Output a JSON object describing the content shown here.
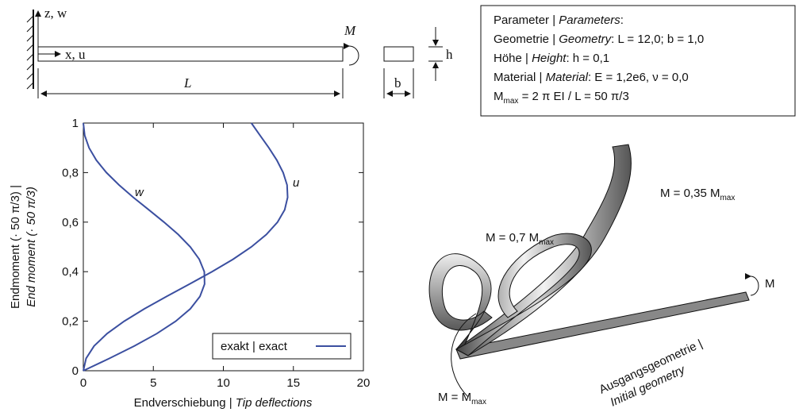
{
  "chart_data": {
    "type": "line",
    "xlabel": {
      "de": "Endverschiebung |",
      "en": "Tip deflections"
    },
    "ylabel": {
      "de": "Endmoment (· 50 π/3) |",
      "en": "End moment (· 50 π/3)"
    },
    "legend_label": "exakt | exact",
    "xlim": [
      0,
      20
    ],
    "xticks": [
      0,
      5,
      10,
      15,
      20
    ],
    "ylim": [
      0,
      1
    ],
    "yticks": [
      0,
      {
        "value": 0.2,
        "label": "0,2"
      },
      {
        "value": 0.4,
        "label": "0,4"
      },
      {
        "value": 0.6,
        "label": "0,6"
      },
      {
        "value": 0.8,
        "label": "0,8"
      },
      1
    ],
    "series": [
      {
        "name": "w",
        "color": "#3b4fa0",
        "x": [
          0,
          1.87,
          3.65,
          5.25,
          6.6,
          7.64,
          8.33,
          8.66,
          8.64,
          8.28,
          7.64,
          6.78,
          5.76,
          4.67,
          3.57,
          2.55,
          1.65,
          0.93,
          0.41,
          0.1,
          0
        ],
        "values": [
          0,
          0.05,
          0.1,
          0.15,
          0.2,
          0.25,
          0.3,
          0.35,
          0.4,
          0.45,
          0.5,
          0.55,
          0.6,
          0.65,
          0.7,
          0.75,
          0.8,
          0.85,
          0.9,
          0.95,
          1
        ]
      },
      {
        "name": "u",
        "color": "#3b4fa0",
        "x": [
          0,
          0.2,
          0.77,
          1.7,
          2.92,
          4.36,
          5.95,
          7.59,
          9.19,
          10.69,
          12,
          13.07,
          13.87,
          14.38,
          14.59,
          14.55,
          14.27,
          13.82,
          13.25,
          12.62,
          12
        ],
        "values": [
          0,
          0.05,
          0.1,
          0.15,
          0.2,
          0.25,
          0.3,
          0.35,
          0.4,
          0.45,
          0.5,
          0.55,
          0.6,
          0.65,
          0.7,
          0.75,
          0.8,
          0.85,
          0.9,
          0.95,
          1
        ]
      }
    ]
  },
  "beam": {
    "z_axis": "z, w",
    "x_axis": "x, u",
    "moment": "M",
    "length": "L",
    "height": "h",
    "width": "b"
  },
  "parameters": {
    "line1": [
      "Parameter | ",
      "Parameters",
      ":"
    ],
    "line2": [
      "Geometrie | ",
      "Geometry",
      ": L = 12,0; b = 1,0"
    ],
    "line3": [
      "Höhe | ",
      "Height",
      ": h = 0,1"
    ],
    "line4": [
      "Material | ",
      "Material",
      ": E = 1,2e6, ν = 0,0"
    ],
    "line5": [
      "M",
      "max",
      " = 2 π EI / L = 50 π/3"
    ]
  },
  "deformed": {
    "m035": [
      "M = 0,35 M",
      "max"
    ],
    "m07": [
      "M = 0,7 M",
      "max"
    ],
    "m1": [
      "M = M",
      "max"
    ],
    "moment": "M",
    "initial": [
      "Ausgangsgeometrie |",
      "Initial geometry"
    ]
  }
}
